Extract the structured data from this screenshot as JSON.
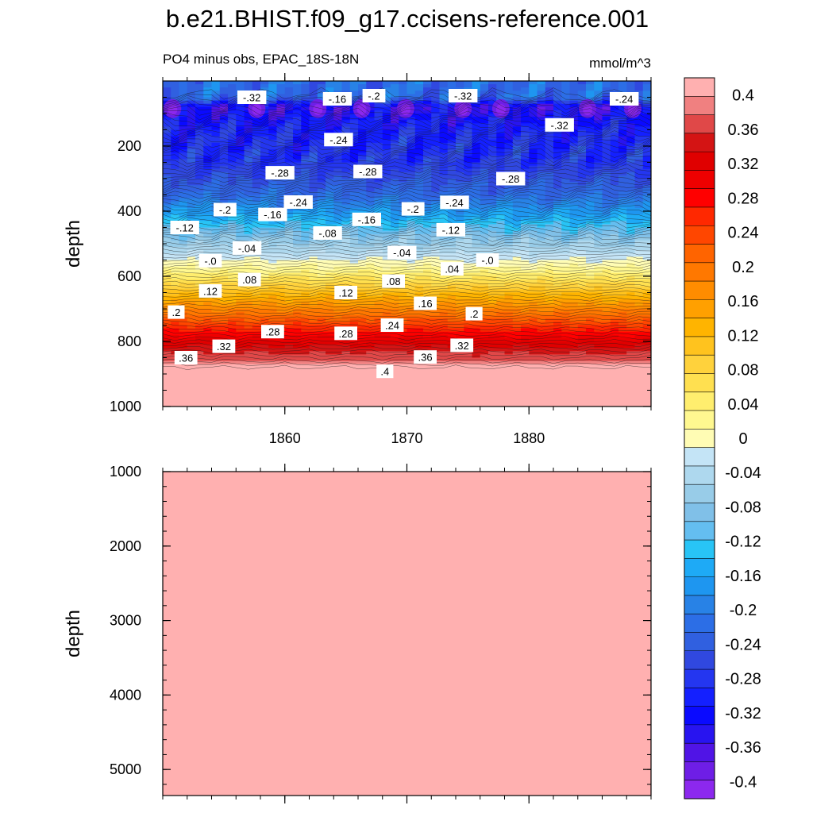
{
  "chart_data": {
    "type": "heatmap",
    "title": "b.e21.BHIST.f09_g17.ccisens-reference.001",
    "subtitle_left": "PO4 minus obs, EPAC_18S-18N",
    "subtitle_right": "mmol/m^3",
    "x_ticks": [
      "1860",
      "1870",
      "1880"
    ],
    "xlim": [
      1850,
      1890
    ],
    "panels": [
      {
        "ylabel": "depth",
        "ylim": [
          0,
          1000
        ],
        "y_ticks": [
          "200",
          "400",
          "600",
          "800",
          "1000"
        ],
        "depth_profile": [
          {
            "depth": 50,
            "value": -0.22
          },
          {
            "depth": 80,
            "value": -0.34
          },
          {
            "depth": 150,
            "value": -0.3
          },
          {
            "depth": 250,
            "value": -0.28
          },
          {
            "depth": 350,
            "value": -0.22
          },
          {
            "depth": 420,
            "value": -0.15
          },
          {
            "depth": 480,
            "value": -0.08
          },
          {
            "depth": 540,
            "value": -0.02
          },
          {
            "depth": 580,
            "value": 0.02
          },
          {
            "depth": 640,
            "value": 0.1
          },
          {
            "depth": 700,
            "value": 0.18
          },
          {
            "depth": 760,
            "value": 0.26
          },
          {
            "depth": 820,
            "value": 0.34
          },
          {
            "depth": 860,
            "value": 0.38
          },
          {
            "depth": 880,
            "value": 0.42
          },
          {
            "depth": 1000,
            "value": 0.42
          }
        ],
        "contour_labels": [
          {
            "text": "-.32",
            "x": 1857.3,
            "depth": 50
          },
          {
            "text": "-.16",
            "x": 1864.3,
            "depth": 55
          },
          {
            "text": "-.2",
            "x": 1867.3,
            "depth": 45
          },
          {
            "text": "-.32",
            "x": 1874.6,
            "depth": 45
          },
          {
            "text": "-.24",
            "x": 1887.8,
            "depth": 55
          },
          {
            "text": "-.32",
            "x": 1882.5,
            "depth": 135
          },
          {
            "text": "-.24",
            "x": 1864.4,
            "depth": 180
          },
          {
            "text": "-.28",
            "x": 1859.6,
            "depth": 282
          },
          {
            "text": "-.28",
            "x": 1866.8,
            "depth": 278
          },
          {
            "text": "-.28",
            "x": 1878.5,
            "depth": 300
          },
          {
            "text": "-.24",
            "x": 1861.1,
            "depth": 372
          },
          {
            "text": "-.2",
            "x": 1855.1,
            "depth": 395
          },
          {
            "text": "-.16",
            "x": 1859.0,
            "depth": 410
          },
          {
            "text": "-.2",
            "x": 1870.5,
            "depth": 393
          },
          {
            "text": "-.24",
            "x": 1873.9,
            "depth": 373
          },
          {
            "text": "-.16",
            "x": 1866.7,
            "depth": 425
          },
          {
            "text": "-.12",
            "x": 1851.8,
            "depth": 450
          },
          {
            "text": "-.12",
            "x": 1873.6,
            "depth": 457
          },
          {
            "text": "-.08",
            "x": 1863.5,
            "depth": 467
          },
          {
            "text": "-.04",
            "x": 1856.9,
            "depth": 513
          },
          {
            "text": "-.04",
            "x": 1869.6,
            "depth": 527
          },
          {
            "text": "-.0",
            "x": 1853.9,
            "depth": 552
          },
          {
            "text": "-.0",
            "x": 1876.6,
            "depth": 550
          },
          {
            "text": ".04",
            "x": 1873.7,
            "depth": 577
          },
          {
            "text": ".08",
            "x": 1857.1,
            "depth": 610
          },
          {
            "text": ".08",
            "x": 1868.9,
            "depth": 615
          },
          {
            "text": ".12",
            "x": 1853.9,
            "depth": 645
          },
          {
            "text": ".12",
            "x": 1865.0,
            "depth": 650
          },
          {
            "text": ".16",
            "x": 1871.5,
            "depth": 683
          },
          {
            "text": ".2",
            "x": 1851.1,
            "depth": 710
          },
          {
            "text": ".2",
            "x": 1875.5,
            "depth": 715
          },
          {
            "text": ".28",
            "x": 1859.0,
            "depth": 770
          },
          {
            "text": ".28",
            "x": 1865.0,
            "depth": 775
          },
          {
            "text": ".24",
            "x": 1868.8,
            "depth": 750
          },
          {
            "text": ".32",
            "x": 1855.0,
            "depth": 815
          },
          {
            "text": ".32",
            "x": 1874.5,
            "depth": 812
          },
          {
            "text": ".36",
            "x": 1851.9,
            "depth": 850
          },
          {
            "text": ".36",
            "x": 1871.5,
            "depth": 848
          },
          {
            "text": ".4",
            "x": 1868.2,
            "depth": 892
          }
        ]
      },
      {
        "ylabel": "depth",
        "ylim": [
          1000,
          5350
        ],
        "y_ticks": [
          "1000",
          "2000",
          "3000",
          "4000",
          "5000"
        ],
        "fill_value": 0.42
      }
    ],
    "colorbar": {
      "labels": [
        "0.4",
        "0.36",
        "0.32",
        "0.28",
        "0.24",
        "0.2",
        "0.16",
        "0.12",
        "0.08",
        "0.04",
        "0",
        "-0.04",
        "-0.08",
        "-0.12",
        "-0.16",
        "-0.2",
        "-0.24",
        "-0.28",
        "-0.32",
        "-0.36",
        "-0.4"
      ],
      "colors": [
        "#ffb0b0",
        "#f08080",
        "#e04848",
        "#d41414",
        "#e00000",
        "#ee0000",
        "#ff0000",
        "#ff2800",
        "#ff4600",
        "#ff6400",
        "#ff7800",
        "#ff8c00",
        "#ffa000",
        "#ffb400",
        "#ffc31e",
        "#ffd23c",
        "#ffe050",
        "#ffee6e",
        "#fff890",
        "#fffcb4",
        "#c4e4f6",
        "#aed8ee",
        "#98cce8",
        "#80c0e8",
        "#64bef0",
        "#28c4f6",
        "#1eaaf6",
        "#1e96f0",
        "#2882e6",
        "#2c6ee6",
        "#3060e0",
        "#3048e0",
        "#2436f0",
        "#1420ff",
        "#0a0aff",
        "#2814f0",
        "#5014e6",
        "#6e1ee6",
        "#8c28ee"
      ]
    }
  }
}
